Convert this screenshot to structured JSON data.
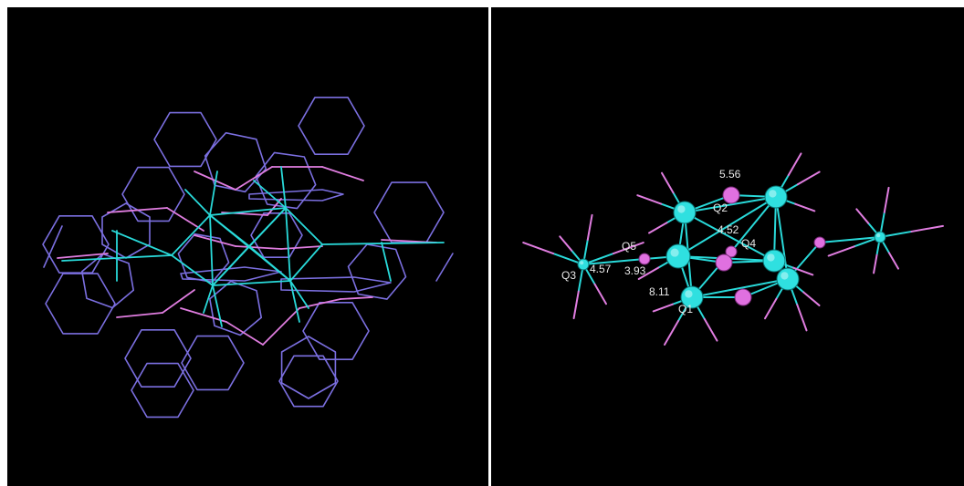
{
  "colors": {
    "background": "#000000",
    "ring_bond": "#7b6fe0",
    "pink_bond": "#e07de0",
    "cyan_bond": "#29d9d9",
    "cyan_atom": "#2fe0e0",
    "pink_atom": "#e070e0"
  },
  "labels": {
    "q1": "Q1",
    "q2": "Q2",
    "q3": "Q3",
    "q4": "Q4",
    "q5": "Q5",
    "v_q1": "8.11",
    "v_q2": "5.56",
    "v_q3": "4.57",
    "v_q4": "4.52",
    "v_q5": "3.93"
  }
}
